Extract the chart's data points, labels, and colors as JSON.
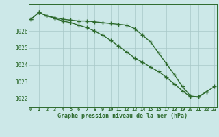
{
  "hours": [
    0,
    1,
    2,
    3,
    4,
    5,
    6,
    7,
    8,
    9,
    10,
    11,
    12,
    13,
    14,
    15,
    16,
    17,
    18,
    19,
    20,
    21,
    22,
    23
  ],
  "pressure_line1": [
    1026.7,
    1027.1,
    1026.9,
    1026.8,
    1026.7,
    1026.65,
    1026.6,
    1026.6,
    1026.55,
    1026.5,
    1026.45,
    1026.4,
    1026.35,
    1026.15,
    1025.75,
    1025.35,
    1024.7,
    1024.05,
    1023.4,
    1022.7,
    1022.15,
    1022.1,
    1022.4,
    null
  ],
  "pressure_line2": [
    1026.7,
    1027.1,
    1026.9,
    1026.75,
    1026.6,
    1026.5,
    1026.35,
    1026.2,
    1026.0,
    1025.75,
    1025.45,
    1025.1,
    1024.75,
    1024.4,
    1024.15,
    1023.85,
    1023.6,
    1023.25,
    1022.85,
    1022.45,
    1022.1,
    1022.1,
    1022.4,
    1022.7
  ],
  "ylim": [
    1021.5,
    1027.6
  ],
  "yticks": [
    1022,
    1023,
    1024,
    1025,
    1026
  ],
  "xticks": [
    0,
    1,
    2,
    3,
    4,
    5,
    6,
    7,
    8,
    9,
    10,
    11,
    12,
    13,
    14,
    15,
    16,
    17,
    18,
    19,
    20,
    21,
    22,
    23
  ],
  "line_color": "#2d6a2d",
  "bg_color": "#cce8e8",
  "grid_color": "#a8c8c8",
  "xlabel": "Graphe pression niveau de la mer (hPa)",
  "marker": "+",
  "marker_size": 4,
  "line_width": 1.0
}
